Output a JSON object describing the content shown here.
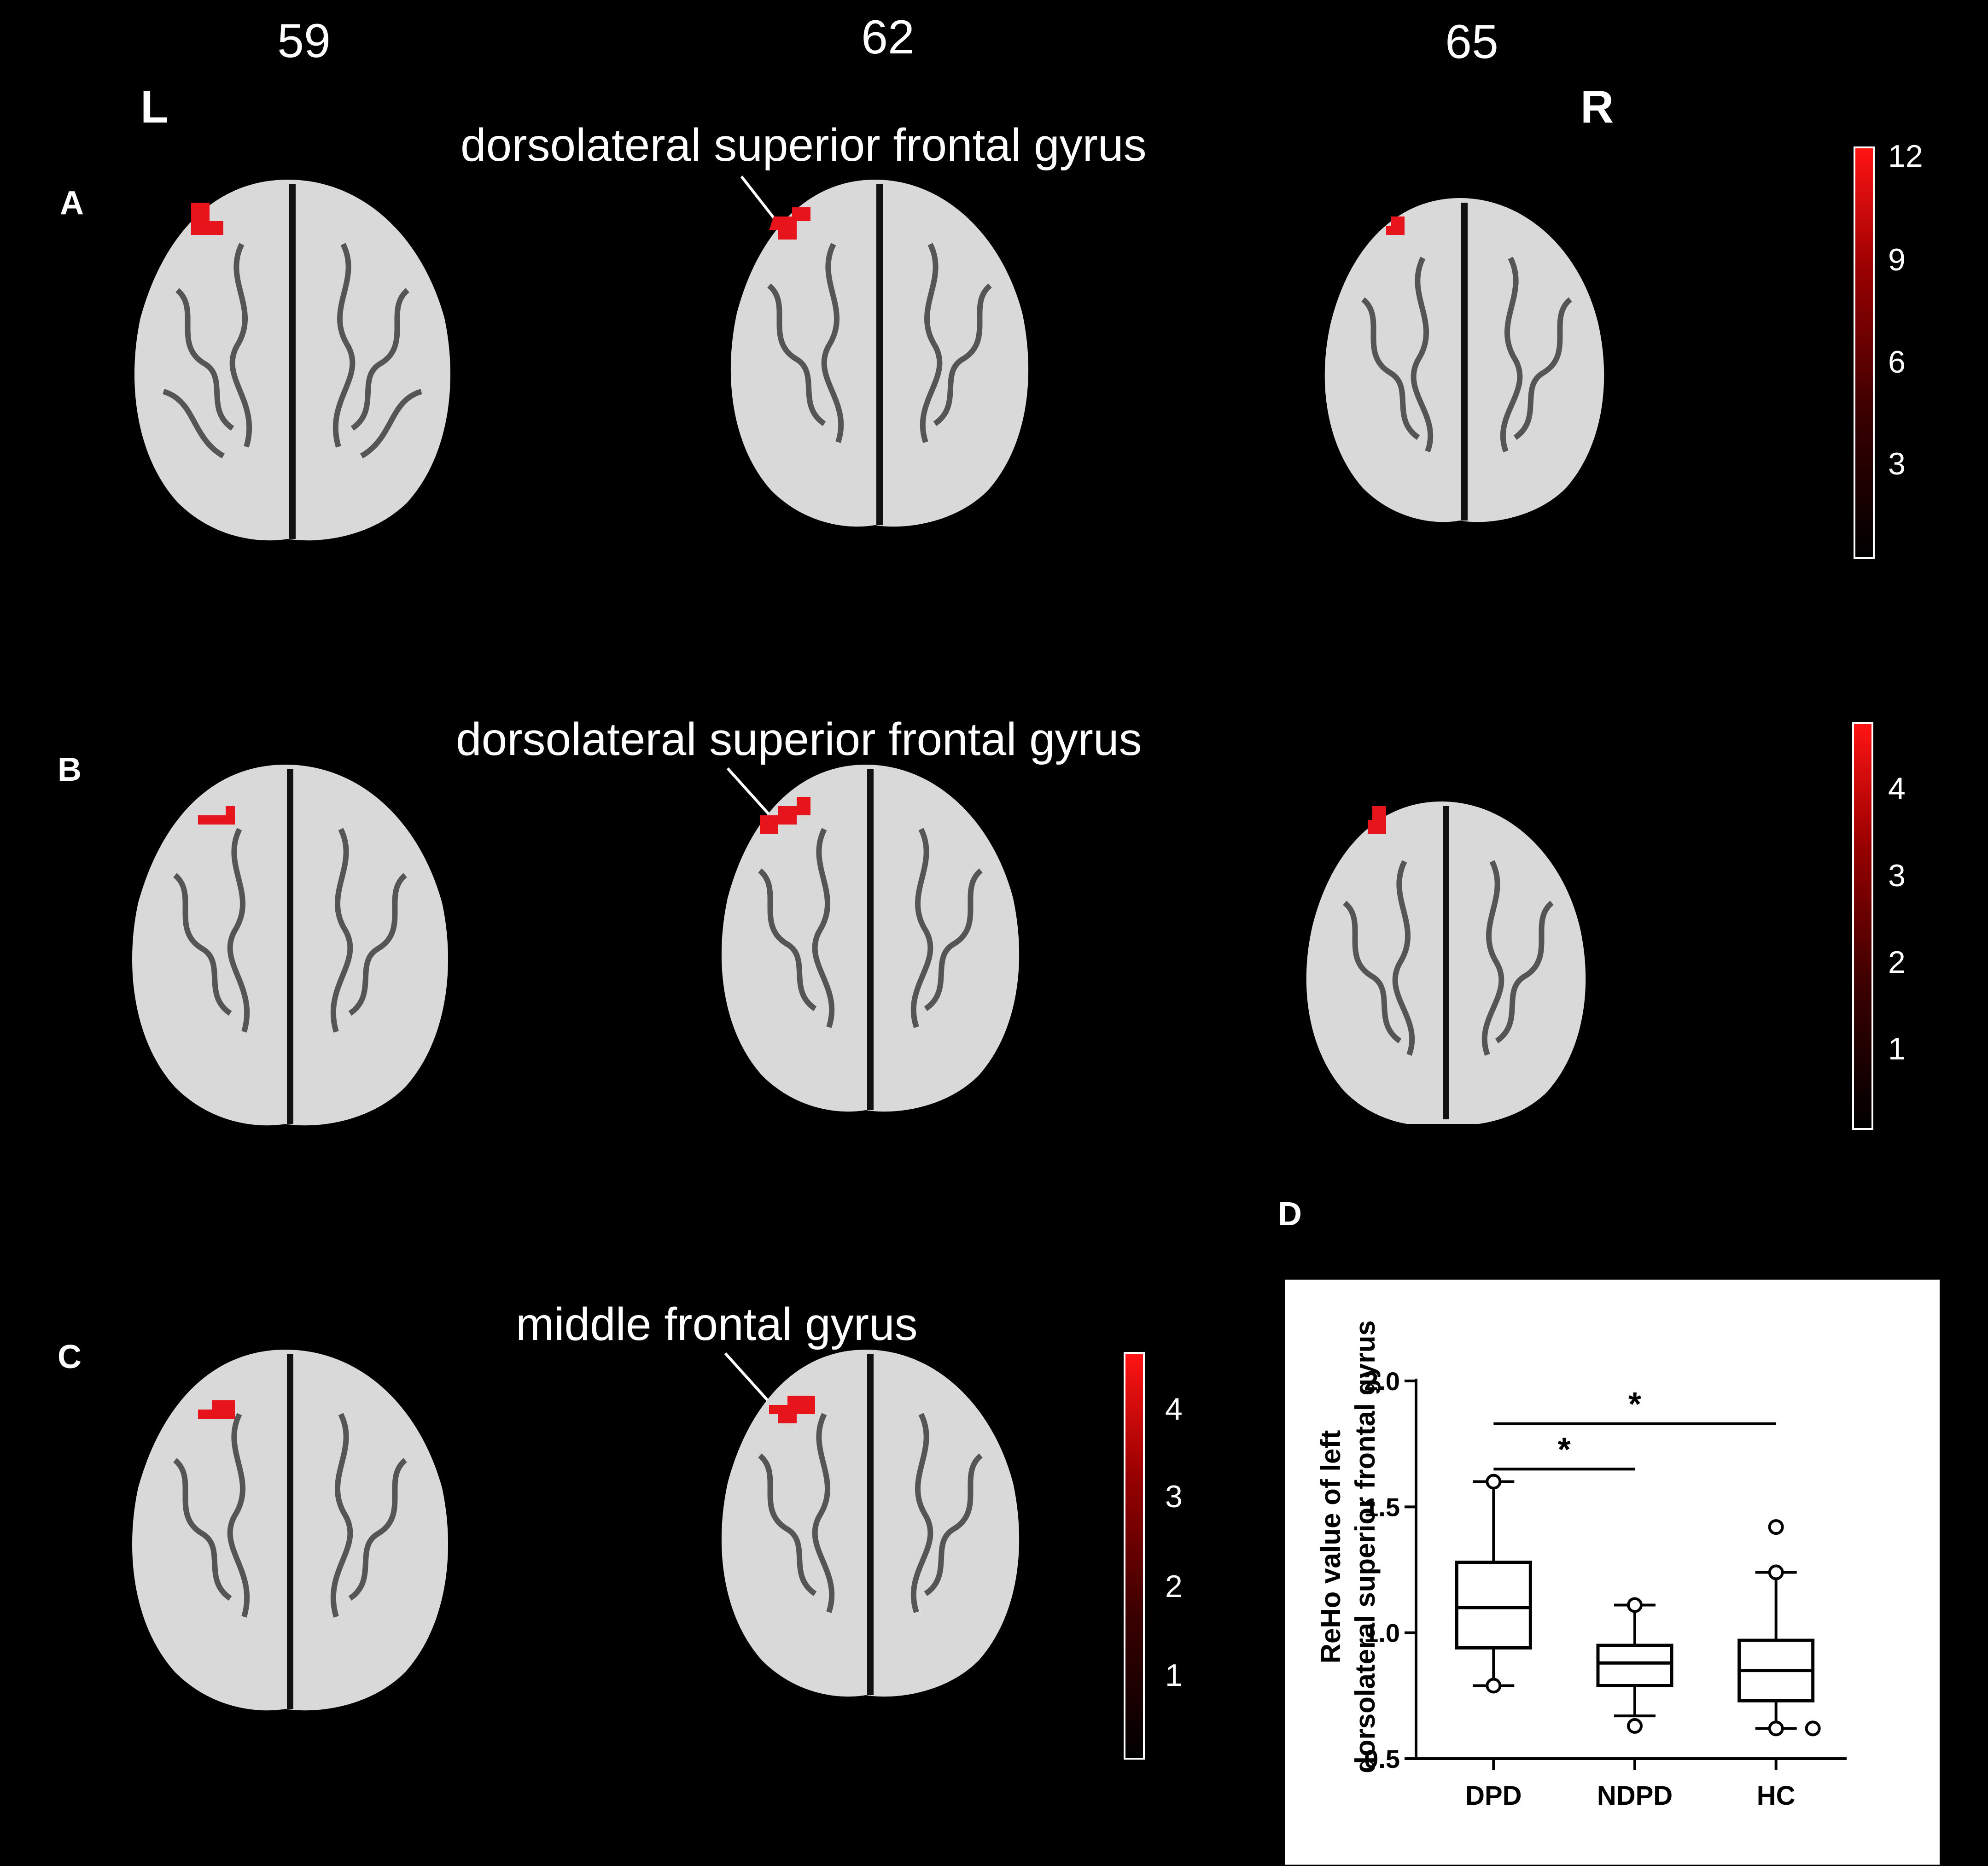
{
  "header": {
    "slices": [
      "59",
      "62",
      "65"
    ],
    "left_label": "L",
    "right_label": "R"
  },
  "panels": [
    {
      "label": "A",
      "region": "dorsolateral superior frontal gyrus",
      "colorbar": [
        "12",
        "9",
        "6",
        "3"
      ]
    },
    {
      "label": "B",
      "region": "dorsolateral superior frontal gyrus",
      "colorbar": [
        "4",
        "3",
        "2",
        "1"
      ]
    },
    {
      "label": "C",
      "region": "middle frontal gyrus",
      "colorbar": [
        "4",
        "3",
        "2",
        "1"
      ]
    },
    {
      "label": "D"
    }
  ],
  "colors": {
    "background": "#000000",
    "activation": "#e8141b",
    "brain": "#d9d9d9"
  },
  "chart_data": {
    "type": "box",
    "ylabel_line1": "ReHo value of left",
    "ylabel_line2": "dorsolateral superior frontal gyrus",
    "ylim": [
      0.5,
      2.0
    ],
    "yticks": [
      "0.5",
      "1.0",
      "1.5",
      "2.0"
    ],
    "categories": [
      "DPD",
      "NDPD",
      "HC"
    ],
    "boxes": [
      {
        "name": "DPD",
        "min": 0.79,
        "q1": 0.94,
        "median": 1.1,
        "q3": 1.28,
        "max": 1.6,
        "outliers": [
          1.6,
          0.79
        ]
      },
      {
        "name": "NDPD",
        "min": 0.67,
        "q1": 0.79,
        "median": 0.88,
        "q3": 0.95,
        "max": 1.11,
        "outliers": [
          1.11,
          0.63
        ]
      },
      {
        "name": "HC",
        "min": 0.62,
        "q1": 0.73,
        "median": 0.85,
        "q3": 0.97,
        "max": 1.24,
        "outliers": [
          1.42,
          1.24,
          0.62,
          0.62
        ]
      }
    ],
    "significance": [
      {
        "from": "DPD",
        "to": "NDPD",
        "label": "*"
      },
      {
        "from": "DPD",
        "to": "HC",
        "label": "*"
      }
    ]
  }
}
